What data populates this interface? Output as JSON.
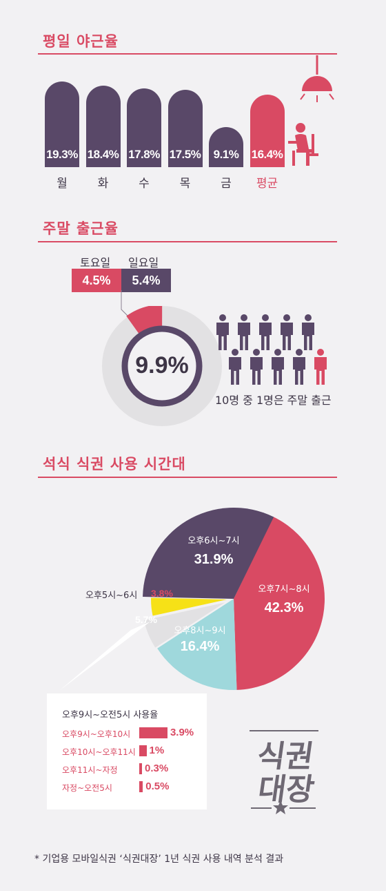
{
  "colors": {
    "accent": "#d94a63",
    "purple": "#594868",
    "cyan": "#9fd8dc",
    "yellow": "#f6e117",
    "lightgray": "#e2e1e3"
  },
  "section1": {
    "title": "평일 야근율"
  },
  "section2": {
    "title": "주말 출근율",
    "saturday_label": "토요일",
    "saturday_value": "4.5%",
    "sunday_label": "일요일",
    "sunday_value": "5.4%",
    "total_value": "9.9%",
    "people_caption": "10명 중 1명은 주말 출근"
  },
  "section3": {
    "title": "석식 식권 사용 시간대",
    "inset_title": "오후9시~오전5시 사용율"
  },
  "logo": {
    "line1": "식권",
    "line2": "대장"
  },
  "footnote": "* 기업용 모바일식권 ‘식권대장’ 1년 식권 사용 내역 분석 결과",
  "chart_data": [
    {
      "type": "bar",
      "title": "평일 야근율",
      "categories": [
        "월",
        "화",
        "수",
        "목",
        "금",
        "평균"
      ],
      "values": [
        19.3,
        18.4,
        17.8,
        17.5,
        9.1,
        16.4
      ],
      "value_labels": [
        "19.3%",
        "18.4%",
        "17.8%",
        "17.5%",
        "9.1%",
        "16.4%"
      ],
      "highlight": "평균"
    },
    {
      "type": "pie",
      "title": "주말 출근율",
      "slices": [
        {
          "label": "토요일",
          "value": 4.5
        },
        {
          "label": "일요일",
          "value": 5.4
        }
      ],
      "total": 9.9
    },
    {
      "type": "pie",
      "title": "석식 식권 사용 시간대",
      "slices": [
        {
          "label": "오후7시~8시",
          "value": 42.3,
          "display": "42.3%"
        },
        {
          "label": "오후8시~9시",
          "value": 16.4,
          "display": "16.4%"
        },
        {
          "label": "",
          "value": 5.7,
          "display": "5.7%"
        },
        {
          "label": "오후5시~6시",
          "value": 3.8,
          "display": "3.8%"
        },
        {
          "label": "오후6시~7시",
          "value": 31.9,
          "display": "31.9%"
        }
      ]
    },
    {
      "type": "bar",
      "title": "오후9시~오전5시 사용율",
      "categories": [
        "오후9시~오후10시",
        "오후10시~오후11시",
        "오후11시~자정",
        "자정~오전5시"
      ],
      "values": [
        3.9,
        1,
        0.3,
        0.5
      ],
      "value_labels": [
        "3.9%",
        "1%",
        "0.3%",
        "0.5%"
      ]
    }
  ]
}
